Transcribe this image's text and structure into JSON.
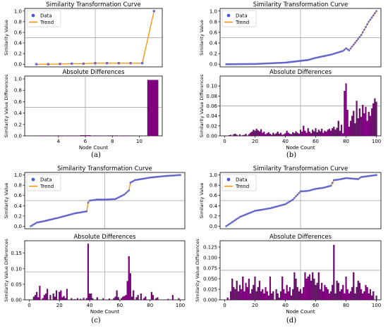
{
  "chart_data": [
    {
      "id": "a",
      "caption": "(a)",
      "top": {
        "type": "line",
        "title": "Similarity Transformation Curve",
        "ylabel": "Similarity Value",
        "legend": {
          "placement": "top-left",
          "data_label": "Data",
          "trend_label": "Trend"
        },
        "xlim": [
          0,
          11.7
        ],
        "ylim": [
          -0.05,
          1.05
        ],
        "yticks": [
          "0.0",
          "0.2",
          "0.4",
          "0.6",
          "0.8",
          "1.0"
        ],
        "ytick_values": [
          0,
          0.2,
          0.4,
          0.6,
          0.8,
          1.0
        ],
        "grid_x": [
          6
        ],
        "grid_y": [
          0.5
        ],
        "mode": "explicit",
        "x": [
          1,
          2,
          3,
          4,
          5,
          6,
          7,
          8,
          9,
          10,
          11
        ],
        "y": [
          0.0,
          0.0,
          0.005,
          0.01,
          0.01,
          0.02,
          0.02,
          0.02,
          0.02,
          0.02,
          1.0
        ]
      },
      "bottom": {
        "type": "bar",
        "title": "Absolute Differences",
        "ylabel": "Similarity Value Differences",
        "xlabel": "Node  Count",
        "xlim": [
          1.5,
          11.7
        ],
        "ylim": [
          0,
          1.05
        ],
        "xticks": [
          "4",
          "6",
          "8",
          "10"
        ],
        "xtick_values": [
          4,
          6,
          8,
          10
        ],
        "yticks": [
          "0.0",
          "0.2",
          "0.4",
          "0.6",
          "0.8",
          "1.0"
        ],
        "ytick_values": [
          0,
          0.2,
          0.4,
          0.6,
          0.8,
          1.0
        ],
        "grid_x": [
          6
        ],
        "grid_y": [
          0.5
        ],
        "bar_width": 0.8,
        "x": [
          2,
          3,
          4,
          5,
          6,
          7,
          8,
          9,
          10,
          11
        ],
        "values": [
          0.0,
          0.002,
          0.003,
          0.002,
          0.008,
          0.003,
          0.005,
          0.003,
          0.0,
          0.98
        ]
      }
    },
    {
      "id": "b",
      "caption": "(b)",
      "top": {
        "type": "line",
        "title": "Similarity Transformation Curve",
        "ylabel": "Similarity Value",
        "legend": {
          "placement": "top-left",
          "data_label": "Data",
          "trend_label": "Trend"
        },
        "xlim": [
          -3,
          103
        ],
        "ylim": [
          -0.05,
          1.05
        ],
        "yticks": [
          "0.0",
          "0.2",
          "0.4",
          "0.6",
          "0.8",
          "1.0"
        ],
        "ytick_values": [
          0,
          0.2,
          0.4,
          0.6,
          0.8,
          1.0
        ],
        "grid_x": [
          50
        ],
        "grid_y": [
          0.5
        ],
        "mode": "keypoints",
        "n": 100,
        "kx": [
          1,
          20,
          40,
          55,
          60,
          70,
          78,
          80,
          82,
          90,
          95,
          100
        ],
        "ky": [
          0.0,
          0.005,
          0.03,
          0.08,
          0.12,
          0.18,
          0.25,
          0.3,
          0.26,
          0.55,
          0.8,
          1.0
        ]
      },
      "bottom": {
        "type": "bar",
        "title": "Absolute Differences",
        "ylabel": "Similarity Value Differences",
        "xlabel": "Node  Count",
        "xlim": [
          -3,
          103
        ],
        "ylim": [
          0,
          0.12
        ],
        "xticks": [
          "0",
          "20",
          "40",
          "60",
          "80",
          "100"
        ],
        "xtick_values": [
          0,
          20,
          40,
          60,
          80,
          100
        ],
        "yticks": [
          "0.00",
          "0.02",
          "0.04",
          "0.06",
          "0.08",
          "0.10"
        ],
        "ytick_values": [
          0,
          0.02,
          0.04,
          0.06,
          0.08,
          0.1
        ],
        "grid_x": [
          50
        ],
        "grid_y": [
          0.06
        ],
        "bar_width": 0.85,
        "x_start": 2,
        "values": [
          0.0,
          0.001,
          0.002,
          0.0,
          0.003,
          0.004,
          0.002,
          0.0,
          0.003,
          0.0,
          0.001,
          0.002,
          0.004,
          0.0,
          0.003,
          0.006,
          0.008,
          0.012,
          0.01,
          0.014,
          0.011,
          0.009,
          0.013,
          0.006,
          0.008,
          0.003,
          0.005,
          0.007,
          0.004,
          0.002,
          0.006,
          0.003,
          0.005,
          0.008,
          0.004,
          0.006,
          0.002,
          0.003,
          0.005,
          0.01,
          0.006,
          0.004,
          0.003,
          0.007,
          0.005,
          0.009,
          0.006,
          0.004,
          0.012,
          0.008,
          0.02,
          0.01,
          0.006,
          0.015,
          0.008,
          0.005,
          0.012,
          0.009,
          0.015,
          0.007,
          0.012,
          0.009,
          0.014,
          0.006,
          0.01,
          0.008,
          0.012,
          0.014,
          0.01,
          0.015,
          0.018,
          0.012,
          0.016,
          0.03,
          0.01,
          0.022,
          0.005,
          0.09,
          0.105,
          0.052,
          0.018,
          0.03,
          0.04,
          0.05,
          0.025,
          0.07,
          0.035,
          0.055,
          0.038,
          0.062,
          0.045,
          0.058,
          0.03,
          0.048,
          0.04,
          0.055,
          0.065,
          0.075,
          0.068
        ]
      }
    },
    {
      "id": "c",
      "caption": "(c)",
      "top": {
        "type": "line",
        "title": "Similarity Transformation Curve",
        "ylabel": "Similarity Value",
        "legend": {
          "placement": "top-left",
          "data_label": "Data",
          "trend_label": "Trend"
        },
        "xlim": [
          -3,
          103
        ],
        "ylim": [
          -0.05,
          1.05
        ],
        "yticks": [
          "0.0",
          "0.2",
          "0.4",
          "0.6",
          "0.8",
          "1.0"
        ],
        "ytick_values": [
          0,
          0.2,
          0.4,
          0.6,
          0.8,
          1.0
        ],
        "grid_x": [
          50
        ],
        "grid_y": [
          0.5
        ],
        "mode": "keypoints",
        "n": 100,
        "kx": [
          1,
          5,
          10,
          20,
          30,
          38,
          39,
          40,
          45,
          50,
          57,
          63,
          66,
          67,
          70,
          80,
          90,
          100
        ],
        "ky": [
          0.0,
          0.07,
          0.1,
          0.17,
          0.25,
          0.29,
          0.46,
          0.5,
          0.52,
          0.52,
          0.53,
          0.62,
          0.7,
          0.85,
          0.9,
          0.95,
          0.98,
          1.0
        ]
      },
      "bottom": {
        "type": "bar",
        "title": "Absolute Differences",
        "ylabel": "Similarity Value Differences",
        "xlabel": "Node  Count",
        "xlim": [
          -3,
          103
        ],
        "ylim": [
          0,
          0.19
        ],
        "xticks": [
          "0",
          "20",
          "40",
          "60",
          "80",
          "100"
        ],
        "xtick_values": [
          0,
          20,
          40,
          60,
          80,
          100
        ],
        "yticks": [
          "0.00",
          "0.05",
          "0.10",
          "0.15"
        ],
        "ytick_values": [
          0,
          0.05,
          0.1,
          0.15
        ],
        "grid_x": [
          50
        ],
        "grid_y": [
          0.09
        ],
        "bar_width": 0.85,
        "x_start": 2,
        "values": [
          0.0,
          0.01,
          0.015,
          0.025,
          0.008,
          0.045,
          0.0,
          0.005,
          0.015,
          0.02,
          0.035,
          0.0,
          0.015,
          0.0,
          0.02,
          0.01,
          0.03,
          0.0,
          0.025,
          0.03,
          0.008,
          0.012,
          0.005,
          0.035,
          0.0,
          0.0,
          0.005,
          0.0,
          0.002,
          0.0,
          0.005,
          0.0,
          0.003,
          0.0,
          0.006,
          0.0,
          0.005,
          0.18,
          0.02,
          0.02,
          0.005,
          0.0,
          0.0,
          0.008,
          0.0,
          0.0,
          0.0,
          0.005,
          0.0,
          0.0,
          0.0,
          0.004,
          0.0,
          0.0,
          0.005,
          0.01,
          0.03,
          0.008,
          0.0,
          0.005,
          0.01,
          0.012,
          0.015,
          0.06,
          0.14,
          0.085,
          0.01,
          0.03,
          0.0,
          0.008,
          0.015,
          0.0,
          0.02,
          0.0,
          0.005,
          0.01,
          0.0,
          0.0,
          0.0,
          0.025,
          0.015,
          0.0,
          0.005,
          0.008,
          0.0,
          0.0,
          0.0,
          0.0,
          0.0,
          0.0,
          0.003,
          0.0,
          0.0,
          0.015,
          0.0,
          0.0,
          0.0,
          0.005,
          0.0
        ]
      }
    },
    {
      "id": "d",
      "caption": "(d)",
      "top": {
        "type": "line",
        "title": "Similarity Transformation Curve",
        "ylabel": "Similarity Value",
        "legend": {
          "placement": "top-left",
          "data_label": "Data",
          "trend_label": "Trend"
        },
        "xlim": [
          -3,
          103
        ],
        "ylim": [
          -0.05,
          1.05
        ],
        "yticks": [
          "0.0",
          "0.2",
          "0.4",
          "0.6",
          "0.8",
          "1.0"
        ],
        "ytick_values": [
          0,
          0.2,
          0.4,
          0.6,
          0.8,
          1.0
        ],
        "grid_x": [
          50
        ],
        "grid_y": [
          0.5
        ],
        "mode": "keypoints",
        "n": 100,
        "kx": [
          1,
          10,
          20,
          30,
          40,
          45,
          50,
          55,
          60,
          65,
          70,
          72,
          75,
          80,
          88,
          90,
          95,
          100
        ],
        "ky": [
          0.0,
          0.18,
          0.3,
          0.35,
          0.43,
          0.52,
          0.68,
          0.69,
          0.73,
          0.75,
          0.79,
          0.9,
          0.91,
          0.94,
          0.92,
          0.96,
          0.98,
          1.0
        ]
      },
      "bottom": {
        "type": "bar",
        "title": "Absolute Differences",
        "ylabel": "Similarity Value Differences",
        "xlabel": "Node  Count",
        "xlim": [
          -3,
          103
        ],
        "ylim": [
          0,
          0.14
        ],
        "xticks": [
          "0",
          "20",
          "40",
          "60",
          "80",
          "100"
        ],
        "xtick_values": [
          0,
          20,
          40,
          60,
          80,
          100
        ],
        "yticks": [
          "0.000",
          "0.025",
          "0.050",
          "0.075",
          "0.100",
          "0.125"
        ],
        "ytick_values": [
          0,
          0.025,
          0.05,
          0.075,
          0.1,
          0.125
        ],
        "grid_x": [
          50
        ],
        "grid_y": [
          0.07
        ],
        "bar_width": 0.85,
        "x_start": 2,
        "values": [
          0.005,
          0.0,
          0.02,
          0.05,
          0.03,
          0.025,
          0.045,
          0.02,
          0.035,
          0.025,
          0.055,
          0.02,
          0.04,
          0.03,
          0.05,
          0.015,
          0.025,
          0.035,
          0.055,
          0.02,
          0.03,
          0.045,
          0.02,
          0.025,
          0.015,
          0.03,
          0.02,
          0.01,
          0.055,
          0.015,
          0.02,
          0.0,
          0.025,
          0.015,
          0.005,
          0.02,
          0.055,
          0.025,
          0.015,
          0.035,
          0.02,
          0.03,
          0.01,
          0.025,
          0.065,
          0.05,
          0.03,
          0.02,
          0.025,
          0.015,
          0.03,
          0.065,
          0.05,
          0.055,
          0.06,
          0.045,
          0.065,
          0.05,
          0.035,
          0.04,
          0.065,
          0.025,
          0.04,
          0.02,
          0.035,
          0.03,
          0.025,
          0.015,
          0.02,
          0.035,
          0.13,
          0.015,
          0.045,
          0.04,
          0.02,
          0.025,
          0.035,
          0.015,
          0.055,
          0.025,
          0.015,
          0.02,
          0.03,
          0.065,
          0.015,
          0.03,
          0.045,
          0.04,
          0.025,
          0.015,
          0.02,
          0.035,
          0.03,
          0.015,
          0.025,
          0.01,
          0.02,
          0.0,
          0.01
        ]
      }
    }
  ],
  "style": {
    "data_point_color": "#4d5ad8",
    "trend_color": "#ff8c00",
    "bar_color": "#800080",
    "bar_edge_color": "#3a0040",
    "grid_color": "#9a9a9a"
  }
}
